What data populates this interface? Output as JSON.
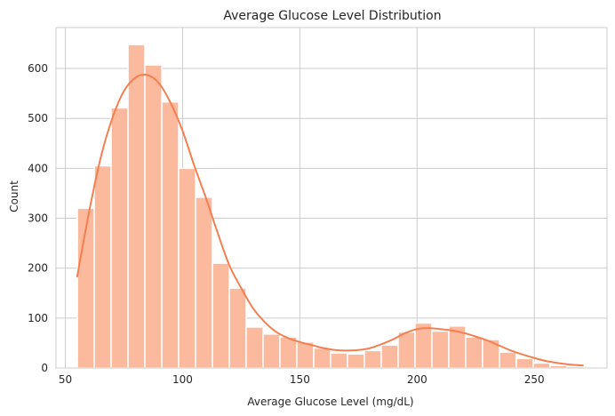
{
  "chart_data": {
    "type": "bar",
    "subtype": "histogram",
    "title": "Average Glucose Level Distribution",
    "xlabel": "Average Glucose Level (mg/dL)",
    "ylabel": "Count",
    "xlim": [
      46.0,
      281.0
    ],
    "ylim": [
      0,
      682
    ],
    "grid": true,
    "x_ticks": [
      50,
      100,
      150,
      200,
      250
    ],
    "y_ticks": [
      0,
      100,
      200,
      300,
      400,
      500,
      600
    ],
    "bin_start": 55.12,
    "bin_width": 7.2,
    "counts": [
      320,
      405,
      521,
      648,
      607,
      533,
      400,
      342,
      210,
      160,
      82,
      68,
      62,
      52,
      40,
      30,
      28,
      35,
      46,
      72,
      90,
      74,
      84,
      62,
      57,
      32,
      19,
      10,
      5,
      3
    ],
    "kde": {
      "name": "KDE",
      "x": [
        55,
        60,
        65,
        70,
        75,
        80,
        85,
        90,
        95,
        100,
        105,
        110,
        115,
        120,
        125,
        130,
        135,
        140,
        145,
        150,
        155,
        160,
        165,
        170,
        175,
        180,
        185,
        190,
        195,
        200,
        205,
        210,
        215,
        220,
        225,
        230,
        235,
        240,
        245,
        250,
        255,
        260,
        265,
        271
      ],
      "y": [
        182,
        310,
        420,
        500,
        555,
        582,
        587,
        570,
        530,
        475,
        405,
        340,
        270,
        205,
        160,
        120,
        92,
        72,
        60,
        52,
        46,
        40,
        36,
        35,
        36,
        40,
        48,
        58,
        70,
        78,
        80,
        78,
        75,
        70,
        63,
        55,
        45,
        35,
        27,
        20,
        14,
        10,
        7,
        5
      ]
    },
    "colors": {
      "bar": "#fbb99d",
      "bar_edge": "#ffffff",
      "line": "#f47f50",
      "grid": "#cccccc",
      "spine": "#cccccc",
      "text": "#262626"
    }
  }
}
